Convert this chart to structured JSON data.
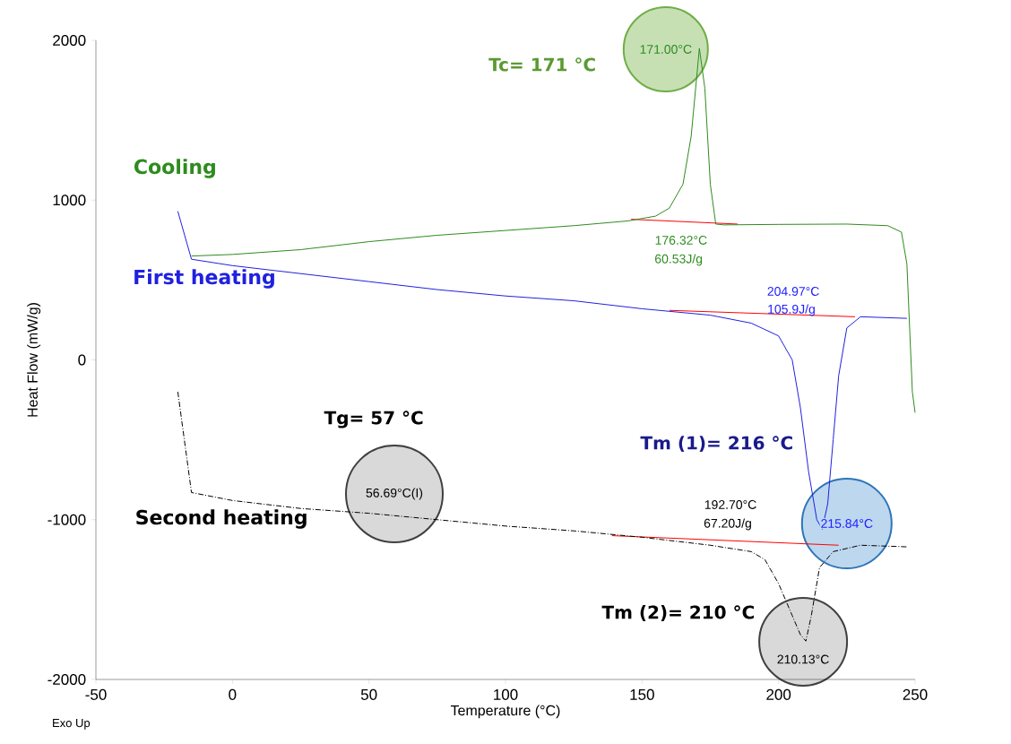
{
  "chart_data": {
    "type": "line",
    "xlabel": "Temperature (°C)",
    "ylabel": "Heat Flow (mW/g)",
    "xlim": [
      -50,
      250
    ],
    "ylim": [
      -2000,
      2000
    ],
    "xticks": [
      -50,
      0,
      50,
      100,
      150,
      200,
      250
    ],
    "yticks": [
      -2000,
      -1000,
      0,
      1000,
      2000
    ],
    "series": [
      {
        "name": "Cooling",
        "color": "#2e8b1e",
        "line_style": "solid",
        "x": [
          -15,
          0,
          25,
          50,
          75,
          100,
          125,
          145,
          155,
          160,
          165,
          168,
          171,
          173,
          175,
          177,
          180,
          200,
          225,
          240,
          245,
          247,
          248,
          249,
          250
        ],
        "values": [
          650,
          660,
          690,
          740,
          780,
          810,
          840,
          870,
          900,
          950,
          1100,
          1400,
          1950,
          1700,
          1100,
          850,
          845,
          848,
          850,
          840,
          800,
          600,
          200,
          -200,
          -330
        ]
      },
      {
        "name": "First heating",
        "color": "#2020e0",
        "line_style": "solid",
        "x": [
          -20,
          -15,
          0,
          25,
          50,
          75,
          100,
          125,
          150,
          175,
          190,
          200,
          205,
          208,
          211,
          214,
          216,
          218,
          220,
          222,
          225,
          230,
          247
        ],
        "values": [
          930,
          630,
          590,
          540,
          490,
          440,
          400,
          370,
          320,
          280,
          230,
          150,
          0,
          -300,
          -700,
          -1000,
          -1060,
          -900,
          -500,
          -100,
          200,
          270,
          260
        ]
      },
      {
        "name": "Second heating",
        "color": "#000000",
        "line_style": "dashed",
        "x": [
          -20,
          -15,
          0,
          25,
          50,
          75,
          100,
          125,
          150,
          175,
          190,
          195,
          200,
          205,
          208,
          210,
          212,
          215,
          220,
          230,
          247
        ],
        "values": [
          -200,
          -830,
          -880,
          -930,
          -960,
          -1000,
          -1040,
          -1070,
          -1110,
          -1160,
          -1200,
          -1250,
          -1400,
          -1600,
          -1720,
          -1760,
          -1600,
          -1300,
          -1200,
          -1160,
          -1170
        ]
      },
      {
        "color": "#ff0000",
        "line_style": "solid",
        "x": [
          146,
          185
        ],
        "values": [
          880,
          850
        ]
      },
      {
        "color": "#ff0000",
        "line_style": "solid",
        "x": [
          160,
          228
        ],
        "values": [
          310,
          270
        ]
      },
      {
        "color": "#ff0000",
        "line_style": "solid",
        "x": [
          139,
          222
        ],
        "values": [
          -1100,
          -1160
        ]
      }
    ],
    "annotations": [
      "Tc= 171 °C",
      "171.00°C",
      "176.32°C",
      "60.53J/g",
      "204.97°C",
      "105.9J/g",
      "Tg= 57 °C",
      "Tm (1)= 216 °C",
      "56.69°C(I)",
      "192.70°C",
      "67.20J/g",
      "215.84°C",
      "Tm (2)= 210 °C",
      "210.13°C",
      "Exo Up"
    ]
  }
}
